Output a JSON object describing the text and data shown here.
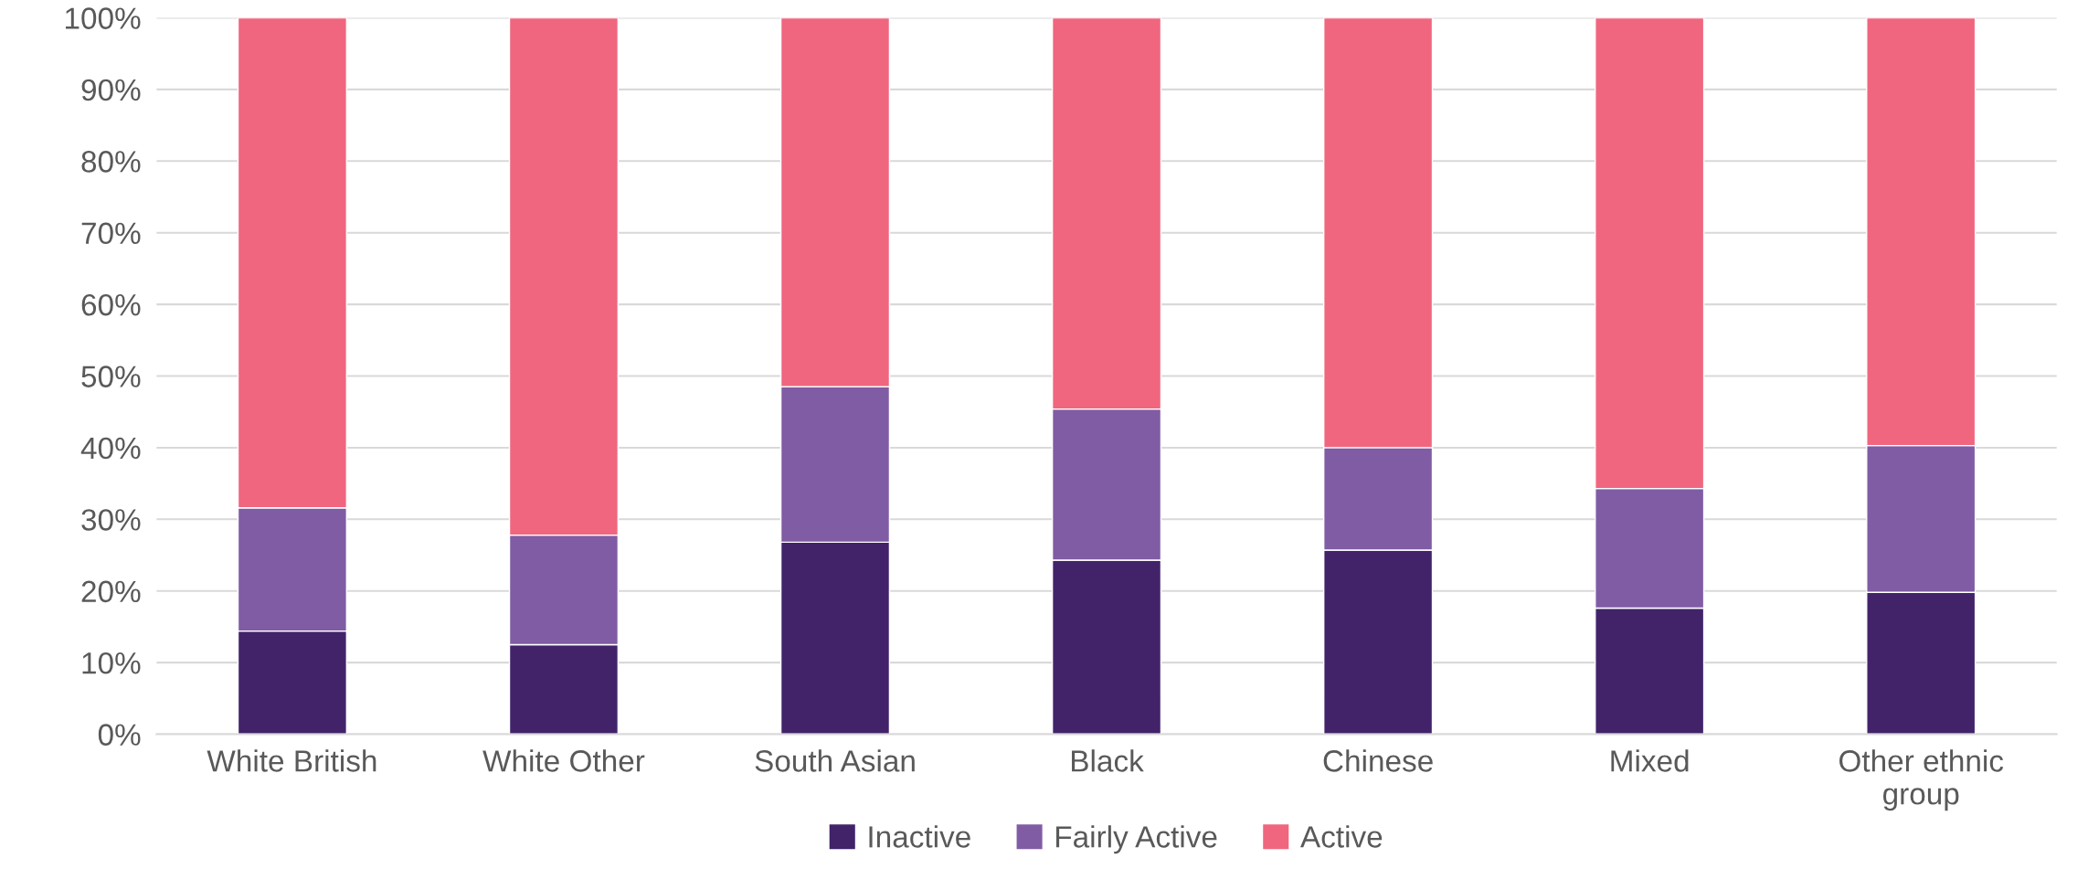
{
  "chart_data": {
    "type": "bar",
    "stacked": true,
    "categories": [
      "White British",
      "White Other",
      "South Asian",
      "Black",
      "Chinese",
      "Mixed",
      "Other ethnic\ngroup"
    ],
    "series": [
      {
        "name": "Inactive",
        "color": "#42236a",
        "values": [
          14.4,
          12.5,
          26.8,
          24.3,
          25.7,
          17.6,
          19.8
        ]
      },
      {
        "name": "Fairly Active",
        "color": "#805ca4",
        "values": [
          17.2,
          15.3,
          21.7,
          21.1,
          14.3,
          16.7,
          20.5
        ]
      },
      {
        "name": "Active",
        "color": "#f0667f",
        "values": [
          68.4,
          72.2,
          51.5,
          54.6,
          60.0,
          65.7,
          59.7
        ]
      }
    ],
    "ylim": [
      0,
      100
    ],
    "yticks": [
      {
        "value": 0,
        "label": "0%"
      },
      {
        "value": 10,
        "label": "10%"
      },
      {
        "value": 20,
        "label": "20%"
      },
      {
        "value": 30,
        "label": "30%"
      },
      {
        "value": 40,
        "label": "40%"
      },
      {
        "value": 50,
        "label": "50%"
      },
      {
        "value": 60,
        "label": "60%"
      },
      {
        "value": 70,
        "label": "70%"
      },
      {
        "value": 80,
        "label": "80%"
      },
      {
        "value": 90,
        "label": "90%"
      },
      {
        "value": 100,
        "label": "100%"
      }
    ],
    "grid": "y",
    "legend": "bottom"
  }
}
